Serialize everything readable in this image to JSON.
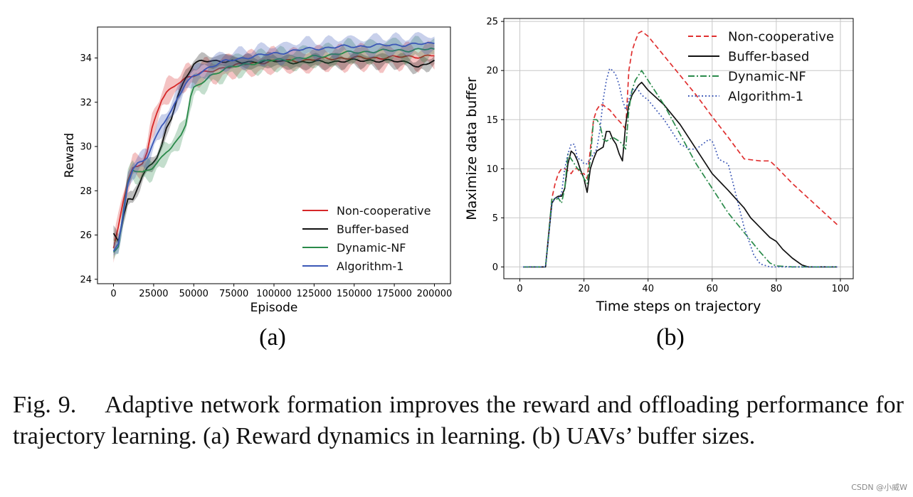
{
  "chart_data": [
    {
      "id": "a",
      "type": "line",
      "subfigure_label": "(a)",
      "xlabel": "Episode",
      "ylabel": "Reward",
      "xlim": [
        -10000,
        210000
      ],
      "ylim": [
        23.8,
        35.4
      ],
      "xticks": [
        0,
        25000,
        50000,
        75000,
        100000,
        125000,
        150000,
        175000,
        200000
      ],
      "yticks": [
        24,
        26,
        28,
        30,
        32,
        34
      ],
      "grid": false,
      "legend": "lower-right",
      "series": [
        {
          "name": "Non-cooperative",
          "color": "#d62728",
          "dash": "solid",
          "band": 0.6,
          "x": [
            0,
            3000,
            6000,
            9000,
            12000,
            15000,
            18000,
            21000,
            24000,
            27000,
            30000,
            33000,
            36000,
            40000,
            45000,
            50000,
            55000,
            60000,
            70000,
            80000,
            90000,
            100000,
            120000,
            140000,
            160000,
            180000,
            200000
          ],
          "y": [
            25.4,
            26.3,
            27.5,
            28.5,
            29.0,
            29.1,
            29.3,
            29.8,
            30.8,
            31.5,
            32.1,
            32.4,
            32.6,
            32.9,
            33.1,
            33.2,
            33.3,
            33.4,
            33.6,
            33.7,
            33.8,
            33.85,
            33.9,
            34.0,
            34.0,
            34.05,
            34.1
          ]
        },
        {
          "name": "Buffer-based",
          "color": "#111111",
          "dash": "solid",
          "band": 0.35,
          "x": [
            0,
            3000,
            6000,
            9000,
            12000,
            15000,
            18000,
            21000,
            24000,
            27000,
            30000,
            33000,
            36000,
            40000,
            45000,
            50000,
            55000,
            60000,
            70000,
            80000,
            90000,
            100000,
            120000,
            140000,
            160000,
            175000,
            185000,
            190000,
            195000,
            200000
          ],
          "y": [
            26.0,
            25.7,
            26.8,
            27.6,
            27.6,
            28.2,
            28.7,
            29.0,
            29.2,
            29.5,
            30.0,
            30.8,
            31.3,
            32.3,
            33.1,
            33.7,
            33.85,
            33.9,
            33.85,
            33.8,
            33.85,
            33.85,
            33.8,
            33.85,
            33.9,
            33.85,
            33.8,
            33.6,
            33.7,
            33.9
          ]
        },
        {
          "name": "Dynamic-NF",
          "color": "#2a8a4a",
          "dash": "solid",
          "band": 0.55,
          "x": [
            0,
            3000,
            6000,
            9000,
            12000,
            15000,
            18000,
            21000,
            24000,
            27000,
            30000,
            33000,
            36000,
            40000,
            42000,
            45000,
            48000,
            50000,
            55000,
            60000,
            70000,
            80000,
            90000,
            100000,
            120000,
            140000,
            160000,
            180000,
            200000
          ],
          "y": [
            25.2,
            25.5,
            27.0,
            28.4,
            29.0,
            28.9,
            28.8,
            28.9,
            29.0,
            29.2,
            29.5,
            29.8,
            30.0,
            30.3,
            30.5,
            31.0,
            32.2,
            32.6,
            32.9,
            33.2,
            33.5,
            33.7,
            33.8,
            33.9,
            34.0,
            34.2,
            34.3,
            34.35,
            34.4
          ]
        },
        {
          "name": "Algorithm-1",
          "color": "#3b57b6",
          "dash": "solid",
          "band": 0.5,
          "x": [
            0,
            3000,
            6000,
            9000,
            12000,
            15000,
            18000,
            21000,
            24000,
            27000,
            30000,
            33000,
            36000,
            40000,
            45000,
            50000,
            55000,
            60000,
            70000,
            80000,
            90000,
            100000,
            120000,
            140000,
            160000,
            180000,
            200000
          ],
          "y": [
            25.3,
            25.6,
            26.9,
            28.4,
            29.0,
            29.2,
            29.3,
            29.5,
            30.0,
            30.5,
            31.0,
            31.3,
            31.6,
            32.2,
            32.8,
            33.2,
            33.4,
            33.6,
            33.85,
            34.0,
            34.1,
            34.2,
            34.4,
            34.5,
            34.55,
            34.6,
            34.65
          ]
        }
      ]
    },
    {
      "id": "b",
      "type": "line",
      "subfigure_label": "(b)",
      "xlabel": "Time steps on trajectory",
      "ylabel": "Maximize data buffer",
      "xlim": [
        -5,
        104
      ],
      "ylim": [
        -1.2,
        25.3
      ],
      "xticks": [
        0,
        20,
        40,
        60,
        80,
        100
      ],
      "yticks": [
        0,
        5,
        10,
        15,
        20,
        25
      ],
      "grid": true,
      "legend": "upper-right",
      "series": [
        {
          "name": "Non-cooperative",
          "color": "#e03030",
          "dash": "dashed",
          "x": [
            1,
            8,
            10,
            11,
            12,
            13,
            14,
            15,
            16,
            17,
            18,
            19,
            20,
            21,
            22,
            23,
            24,
            25,
            26,
            27,
            28,
            30,
            32,
            33,
            34,
            35,
            36,
            37,
            38,
            40,
            45,
            50,
            55,
            60,
            65,
            70,
            75,
            78,
            80,
            85,
            90,
            95,
            99
          ],
          "y": [
            0,
            0,
            7.0,
            8.5,
            9.5,
            10.0,
            10.0,
            9.8,
            9.5,
            10.0,
            10.0,
            9.5,
            9.5,
            9.0,
            12.0,
            15.0,
            16.0,
            16.5,
            16.5,
            16.2,
            16.0,
            15.2,
            14.5,
            14.0,
            20.0,
            22.0,
            23.0,
            23.8,
            24.0,
            23.5,
            21.5,
            19.5,
            17.5,
            15.3,
            13.2,
            11.0,
            10.8,
            10.8,
            10.2,
            8.5,
            7.0,
            5.5,
            4.3
          ]
        },
        {
          "name": "Buffer-based",
          "color": "#111111",
          "dash": "solid",
          "x": [
            1,
            8,
            10,
            11,
            12,
            13,
            14,
            15,
            16,
            17,
            18,
            19,
            20,
            21,
            22,
            23,
            24,
            25,
            26,
            27,
            28,
            29,
            30,
            31,
            32,
            33,
            34,
            35,
            36,
            37,
            38,
            40,
            45,
            50,
            55,
            60,
            65,
            70,
            72,
            75,
            78,
            80,
            82,
            85,
            88,
            90,
            95,
            99
          ],
          "y": [
            0,
            0,
            6.5,
            7.0,
            7.2,
            7.2,
            8.0,
            10.5,
            11.8,
            11.5,
            10.8,
            9.8,
            9.0,
            7.6,
            10.0,
            11.0,
            11.8,
            12.0,
            12.2,
            13.8,
            13.8,
            13.0,
            12.5,
            11.5,
            10.8,
            14.5,
            16.5,
            17.5,
            18.0,
            18.5,
            18.8,
            18.0,
            16.5,
            14.5,
            12.0,
            9.5,
            7.8,
            6.0,
            5.0,
            4.0,
            3.0,
            2.6,
            1.8,
            0.9,
            0.2,
            0.0,
            0.0,
            0.0
          ]
        },
        {
          "name": "Dynamic-NF",
          "color": "#2a8a4a",
          "dash": "dashdot",
          "x": [
            1,
            8,
            10,
            11,
            12,
            13,
            14,
            15,
            16,
            17,
            18,
            19,
            20,
            21,
            22,
            23,
            24,
            25,
            26,
            27,
            28,
            29,
            30,
            31,
            32,
            33,
            34,
            35,
            36,
            37,
            38,
            40,
            45,
            50,
            55,
            60,
            65,
            70,
            75,
            78,
            80,
            85,
            90,
            95,
            99
          ],
          "y": [
            0,
            0,
            7.0,
            6.8,
            7.0,
            6.5,
            8.0,
            11.5,
            11.0,
            10.5,
            10.0,
            9.8,
            9.0,
            8.5,
            11.0,
            15.0,
            15.0,
            14.5,
            13.0,
            12.8,
            13.0,
            13.2,
            13.0,
            12.8,
            12.5,
            12.0,
            16.0,
            18.0,
            19.0,
            19.5,
            20.0,
            19.0,
            16.5,
            13.5,
            10.5,
            8.0,
            5.5,
            3.5,
            1.5,
            0.4,
            0.1,
            0.0,
            0.0,
            0.0,
            0.0
          ]
        },
        {
          "name": "Algorithm-1",
          "color": "#3b57b6",
          "dash": "dotted",
          "x": [
            1,
            8,
            10,
            11,
            12,
            13,
            14,
            15,
            16,
            17,
            18,
            19,
            20,
            21,
            22,
            23,
            24,
            25,
            26,
            27,
            28,
            29,
            30,
            31,
            32,
            33,
            34,
            35,
            36,
            37,
            38,
            40,
            45,
            50,
            53,
            55,
            57,
            59,
            60,
            61,
            62,
            63,
            65,
            70,
            73,
            75,
            78,
            80,
            85,
            90,
            95,
            99
          ],
          "y": [
            0,
            0,
            6.5,
            7.0,
            7.0,
            7.5,
            10.0,
            11.5,
            12.5,
            12.5,
            11.0,
            11.0,
            10.5,
            10.5,
            11.0,
            11.5,
            12.0,
            14.0,
            17.0,
            19.0,
            20.2,
            20.0,
            19.5,
            18.5,
            17.0,
            16.0,
            17.0,
            18.0,
            18.2,
            18.0,
            17.5,
            17.0,
            15.0,
            12.5,
            12.0,
            12.0,
            12.5,
            13.0,
            12.8,
            12.0,
            11.0,
            10.8,
            10.5,
            4.0,
            1.2,
            0.3,
            0.0,
            0.0,
            0.0,
            0.0,
            0.0,
            0.0
          ]
        }
      ]
    }
  ],
  "caption": {
    "fig_number": "Fig. 9.",
    "text": "Adaptive network formation improves the reward and offloading performance for trajectory learning. (a) Reward dynamics in learning. (b) UAVs’ buffer sizes."
  },
  "watermark": "CSDN @小威W"
}
